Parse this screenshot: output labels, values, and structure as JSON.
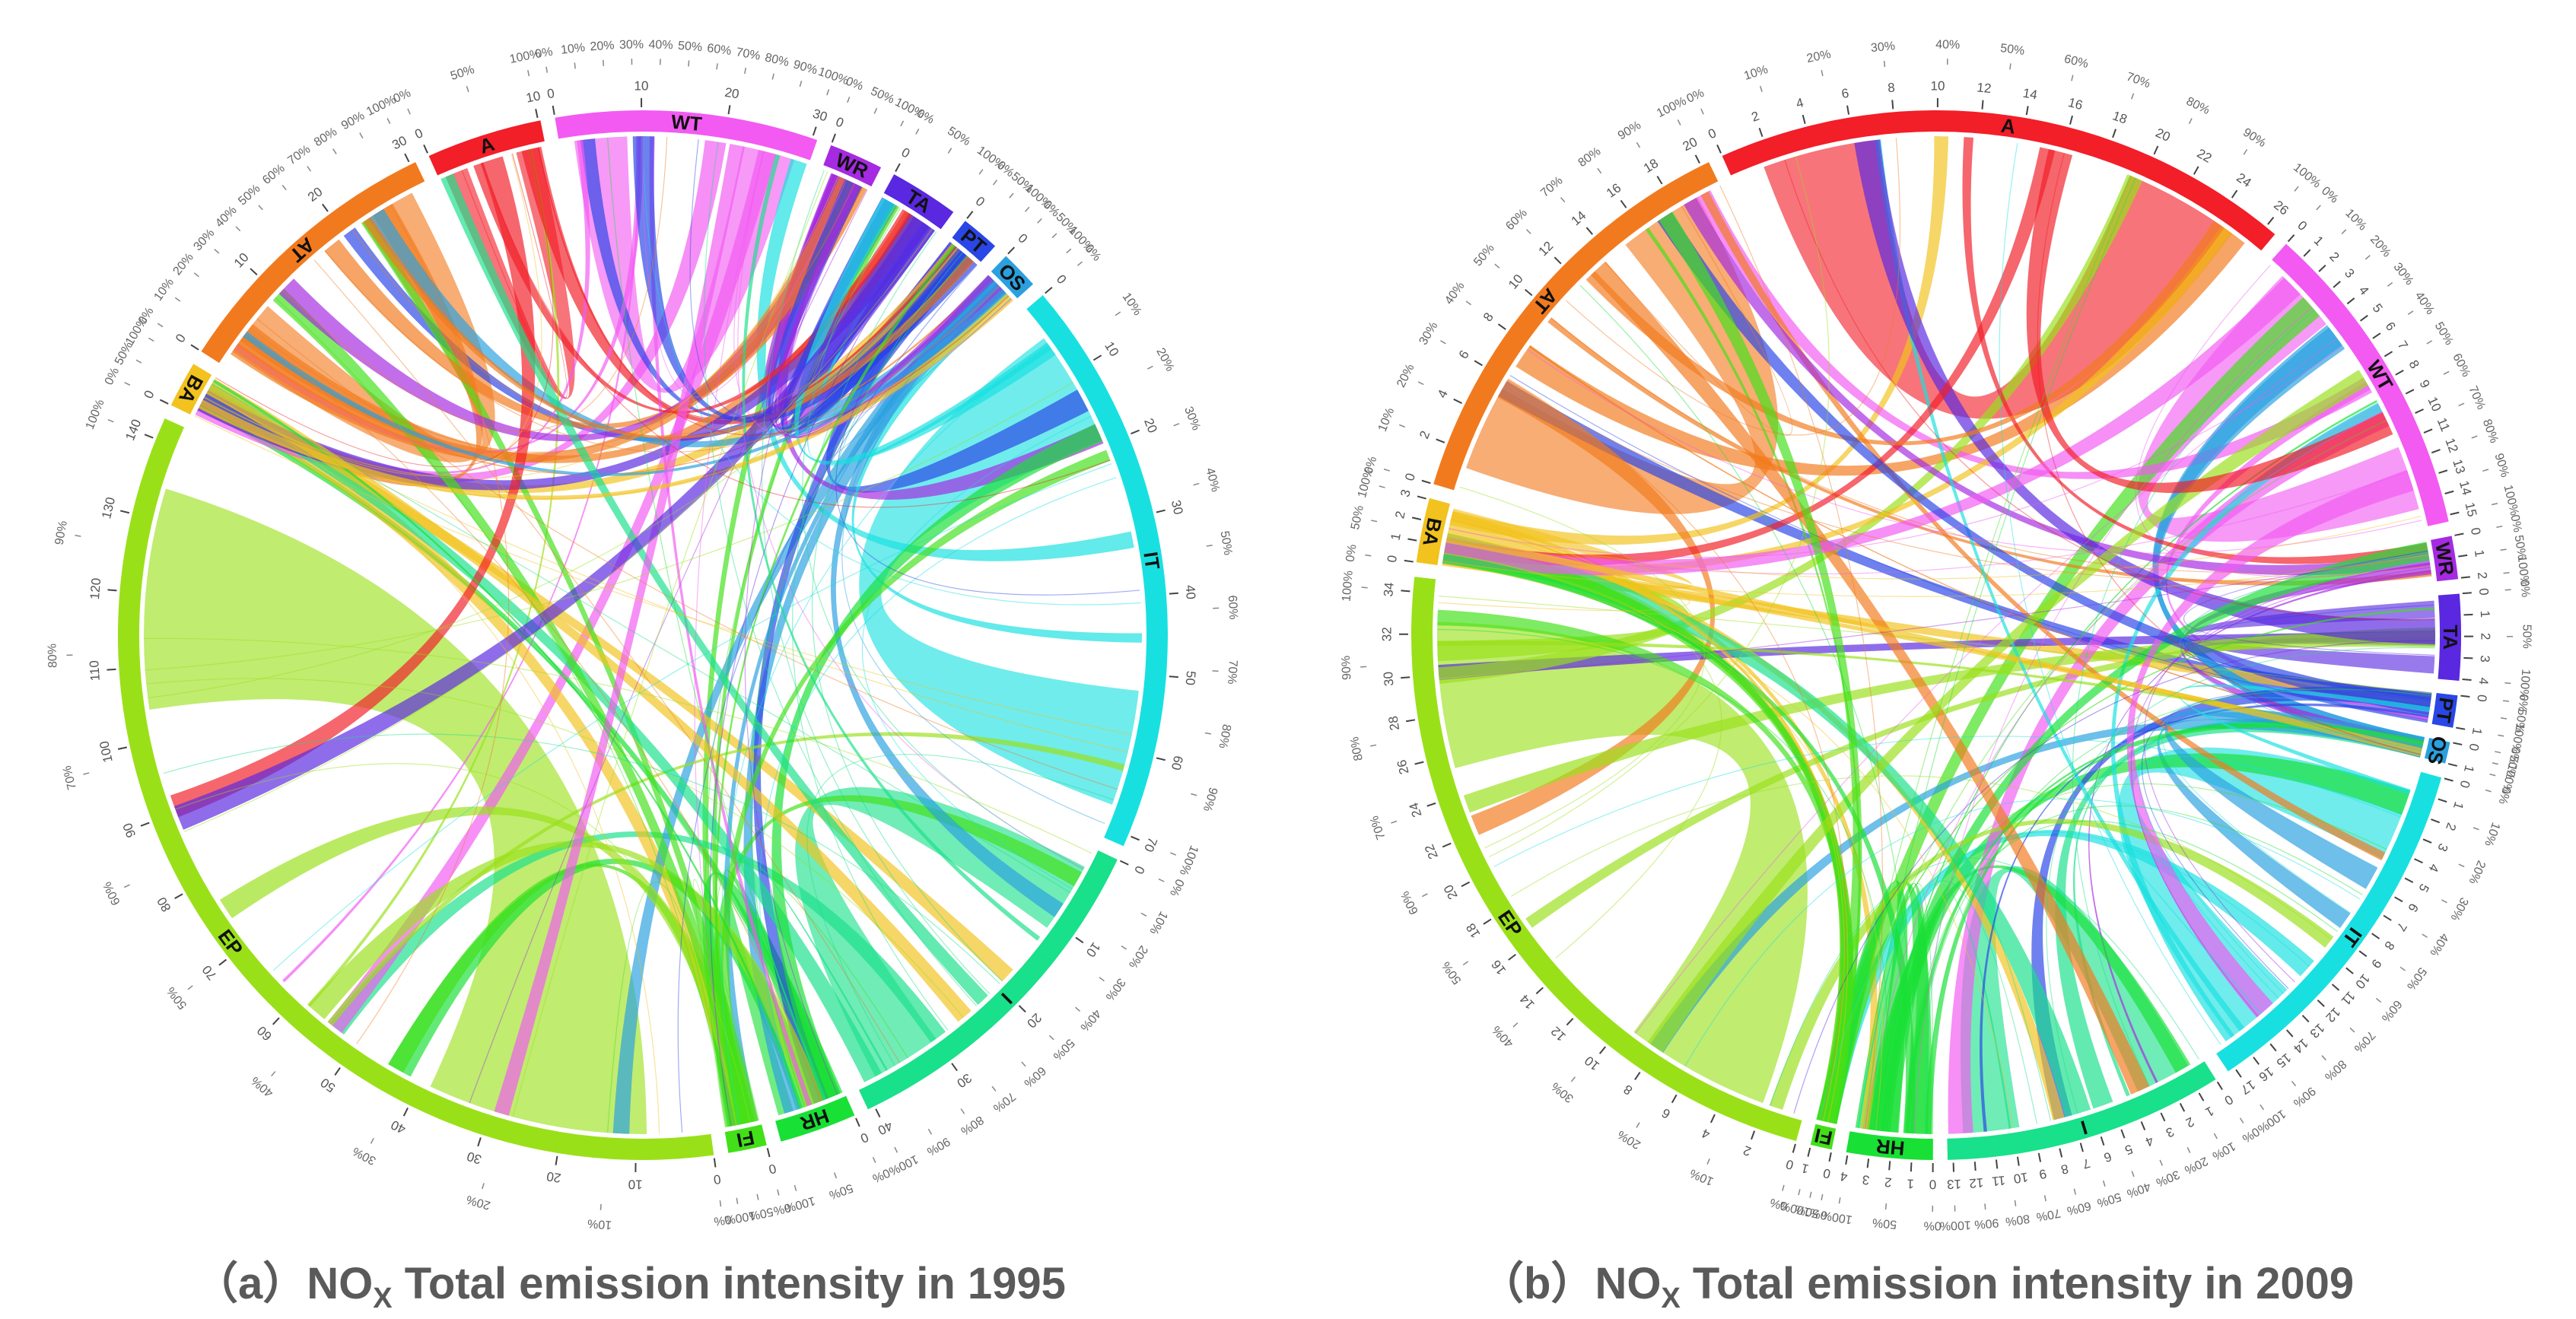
{
  "panels": [
    {
      "id": "a",
      "caption": {
        "prefix": "（a）",
        "main": "NO",
        "sub": "X",
        "suffix": " Total emission intensity in 1995"
      },
      "segments": [
        {
          "code": "A",
          "color": "#f21e28",
          "size": 15,
          "ticks": [
            "0",
            "10"
          ]
        },
        {
          "code": "WT",
          "color": "#f25af2",
          "size": 34,
          "ticks": [
            "0",
            "10",
            "20",
            "30"
          ]
        },
        {
          "code": "WR",
          "color": "#a52ae2",
          "size": 7,
          "ticks": [
            "0"
          ]
        },
        {
          "code": "TA",
          "color": "#5a28e0",
          "size": 9,
          "ticks": [
            "0"
          ]
        },
        {
          "code": "PT",
          "color": "#2a46e6",
          "size": 5,
          "ticks": [
            "0"
          ]
        },
        {
          "code": "OS",
          "color": "#2aa0e0",
          "size": 5,
          "ticks": [
            "0"
          ]
        },
        {
          "code": "IT",
          "color": "#19e0e0",
          "size": 75,
          "ticks": [
            "0",
            "10",
            "20",
            "30",
            "40",
            "50",
            "60",
            "70"
          ]
        },
        {
          "code": "I",
          "color": "#19e08a",
          "size": 46,
          "ticks": [
            "0",
            "10",
            "20",
            "30",
            "40"
          ]
        },
        {
          "code": "HR",
          "color": "#19e035",
          "size": 10,
          "ticks": [
            "0"
          ]
        },
        {
          "code": "FI",
          "color": "#43e019",
          "size": 5,
          "ticks": [
            "0"
          ]
        },
        {
          "code": "EP",
          "color": "#9ae019",
          "size": 143,
          "ticks": [
            "0",
            "10",
            "20",
            "30",
            "40",
            "50",
            "60",
            "70",
            "80",
            "90",
            "100",
            "110",
            "120",
            "130",
            "140"
          ]
        },
        {
          "code": "BA",
          "color": "#f2c21e",
          "size": 6,
          "ticks": [
            "0"
          ]
        },
        {
          "code": "AT",
          "color": "#f27a1e",
          "size": 37,
          "ticks": [
            "0",
            "10",
            "20",
            "30"
          ]
        }
      ],
      "percent_labels": [
        "0%",
        "10%",
        "20%",
        "30%",
        "40%",
        "50%",
        "60%",
        "70%",
        "80%",
        "90%",
        "100%"
      ]
    },
    {
      "id": "b",
      "caption": {
        "prefix": "（b）",
        "main": "NO",
        "sub": "X",
        "suffix": " Total emission intensity in 2009"
      },
      "segments": [
        {
          "code": "A",
          "color": "#f21e28",
          "size": 27,
          "ticks": [
            "0",
            "2",
            "4",
            "6",
            "8",
            "10",
            "12",
            "14",
            "16",
            "18",
            "20",
            "22",
            "24",
            "26"
          ]
        },
        {
          "code": "WT",
          "color": "#f25af2",
          "size": 15,
          "ticks": [
            "0",
            "1",
            "2",
            "3",
            "4",
            "5",
            "6",
            "7",
            "8",
            "9",
            "10",
            "11",
            "12",
            "13",
            "14",
            "15"
          ]
        },
        {
          "code": "WR",
          "color": "#a52ae2",
          "size": 2,
          "ticks": [
            "0",
            "1",
            "2"
          ]
        },
        {
          "code": "TA",
          "color": "#5a28e0",
          "size": 4,
          "ticks": [
            "0",
            "1",
            "2",
            "3",
            "4"
          ]
        },
        {
          "code": "PT",
          "color": "#2a46e6",
          "size": 1.5,
          "ticks": [
            "0",
            "1"
          ]
        },
        {
          "code": "OS",
          "color": "#2aa0e0",
          "size": 1,
          "ticks": [
            "0",
            "1"
          ]
        },
        {
          "code": "IT",
          "color": "#19e0e0",
          "size": 17,
          "ticks": [
            "0",
            "1",
            "2",
            "3",
            "4",
            "5",
            "6",
            "7",
            "8",
            "9",
            "10",
            "11",
            "12",
            "13",
            "14",
            "15",
            "16",
            "17"
          ]
        },
        {
          "code": "I",
          "color": "#19e08a",
          "size": 13,
          "ticks": [
            "0",
            "1",
            "2",
            "3",
            "4",
            "5",
            "6",
            "7",
            "8",
            "9",
            "10",
            "11",
            "12",
            "13"
          ]
        },
        {
          "code": "HR",
          "color": "#19e035",
          "size": 4,
          "ticks": [
            "0",
            "1",
            "2",
            "3",
            "4"
          ]
        },
        {
          "code": "FI",
          "color": "#43e019",
          "size": 1,
          "ticks": [
            "0",
            "1"
          ]
        },
        {
          "code": "EP",
          "color": "#9ae019",
          "size": 34,
          "ticks": [
            "0",
            "2",
            "4",
            "6",
            "8",
            "10",
            "12",
            "14",
            "16",
            "18",
            "20",
            "22",
            "24",
            "26",
            "28",
            "30",
            "32",
            "34"
          ]
        },
        {
          "code": "BA",
          "color": "#f2c21e",
          "size": 3,
          "ticks": [
            "0",
            "1",
            "2",
            "3"
          ]
        },
        {
          "code": "AT",
          "color": "#f27a1e",
          "size": 20,
          "ticks": [
            "0",
            "2",
            "4",
            "6",
            "8",
            "10",
            "12",
            "14",
            "16",
            "18",
            "20"
          ]
        }
      ],
      "percent_labels": [
        "0%",
        "10%",
        "20%",
        "30%",
        "40%",
        "50%",
        "60%",
        "70%",
        "80%",
        "90%",
        "100%"
      ]
    }
  ]
}
